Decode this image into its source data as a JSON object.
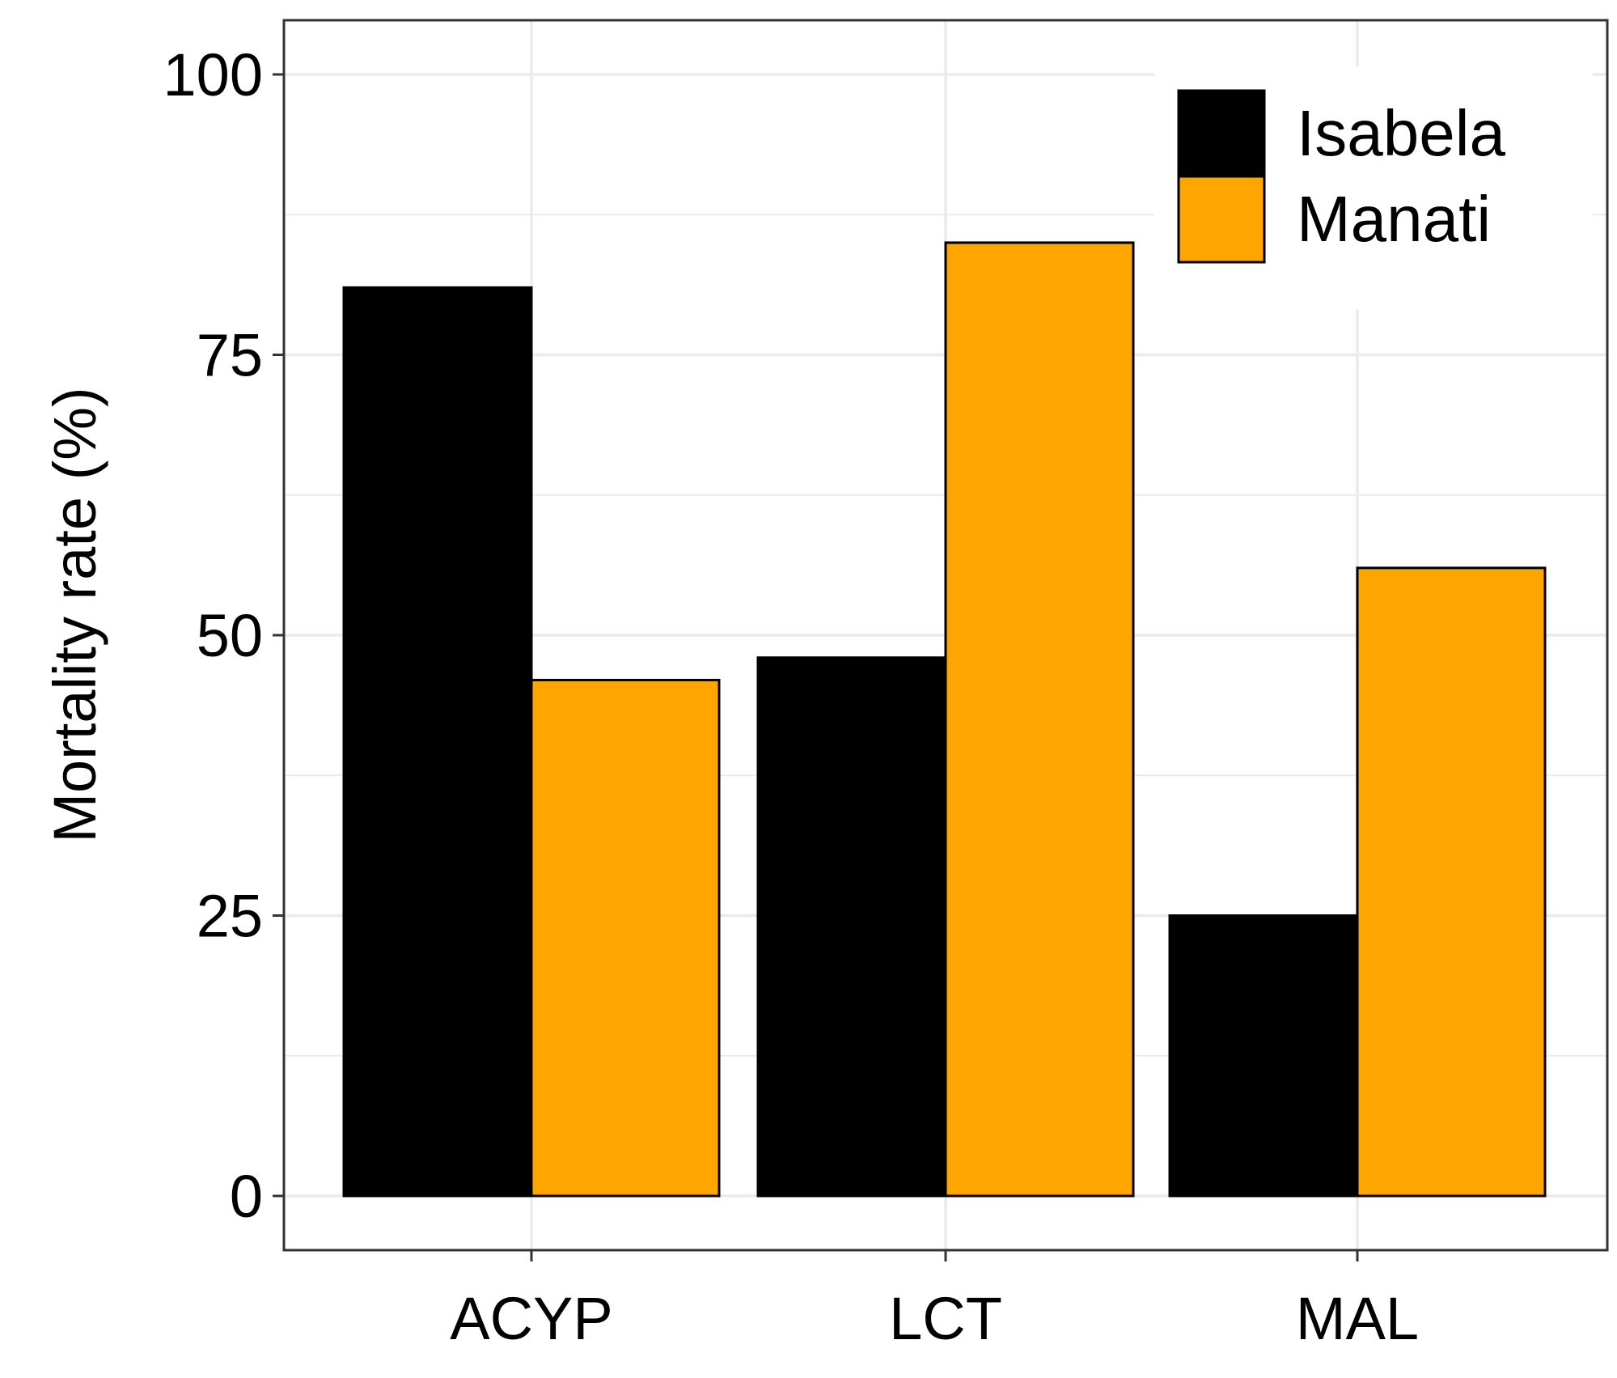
{
  "chart_data": {
    "type": "bar",
    "title": "",
    "xlabel": "",
    "ylabel": "Mortality rate (%)",
    "categories": [
      "ACYP",
      "LCT",
      "MAL"
    ],
    "series": [
      {
        "name": "Isabela",
        "values": [
          81,
          48,
          25
        ],
        "color": "#000000"
      },
      {
        "name": "Manati",
        "values": [
          46,
          85,
          56
        ],
        "color": "#FFA500"
      }
    ],
    "ylim": [
      0,
      105
    ],
    "yticks": [
      "0",
      "25",
      "50",
      "75",
      "100"
    ],
    "grid": true,
    "legend_position": "top-right"
  }
}
